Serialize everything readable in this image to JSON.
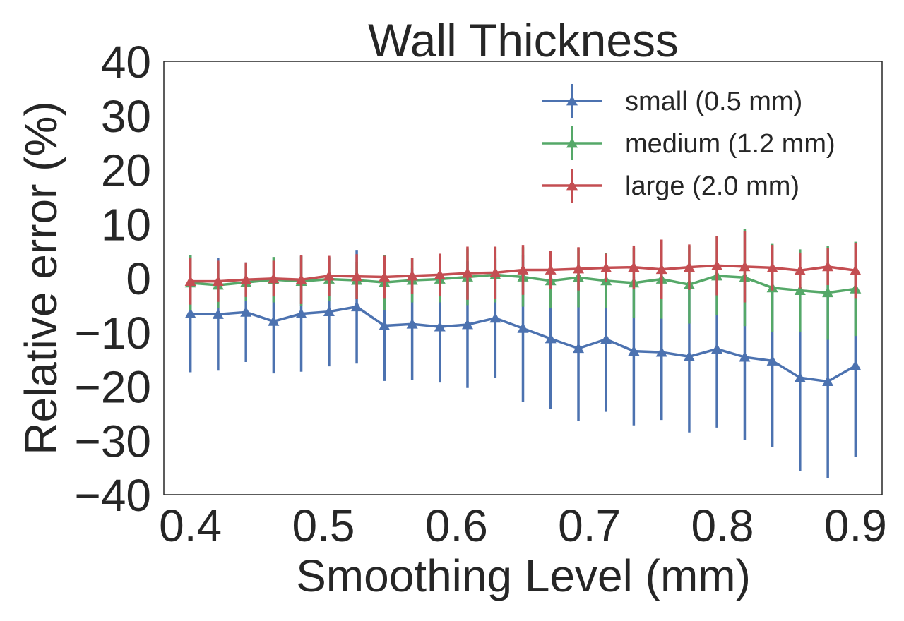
{
  "chart_data": {
    "type": "line",
    "title": "Wall Thickness",
    "xlabel": "Smoothing Level (mm)",
    "ylabel": "Relative error (%)",
    "xlim": [
      0.38,
      0.92
    ],
    "ylim": [
      -40,
      40
    ],
    "xticks": [
      "0.4",
      "0.5",
      "0.6",
      "0.7",
      "0.8",
      "0.9"
    ],
    "yticks": [
      "40",
      "30",
      "20",
      "10",
      "0",
      "−10",
      "−20",
      "−30",
      "−40"
    ],
    "xtick_values": [
      0.4,
      0.5,
      0.6,
      0.7,
      0.8,
      0.9
    ],
    "ytick_values": [
      40,
      30,
      20,
      10,
      0,
      -10,
      -20,
      -30,
      -40
    ],
    "grid": false,
    "legend_position": "top-right",
    "x": [
      0.4,
      0.4208,
      0.4417,
      0.4625,
      0.4833,
      0.5042,
      0.525,
      0.5458,
      0.5667,
      0.5875,
      0.6083,
      0.6292,
      0.65,
      0.6708,
      0.6917,
      0.7125,
      0.7333,
      0.7542,
      0.775,
      0.7958,
      0.8167,
      0.8375,
      0.8583,
      0.8792,
      0.9
    ],
    "series": [
      {
        "name": "small (0.5 mm)",
        "color": "#4c72b0",
        "values": [
          -6.6,
          -6.7,
          -6.3,
          -8.0,
          -6.6,
          -6.2,
          -5.3,
          -8.8,
          -8.5,
          -9.0,
          -8.6,
          -7.4,
          -9.3,
          -11.2,
          -13.0,
          -11.3,
          -13.5,
          -13.7,
          -14.5,
          -13.1,
          -14.6,
          -15.3,
          -18.4,
          -19.1,
          -16.2
        ],
        "err": [
          10.8,
          10.4,
          9.2,
          9.6,
          10.7,
          10.1,
          10.5,
          10.2,
          10.3,
          10.3,
          11.7,
          11.0,
          13.6,
          13.0,
          13.4,
          13.4,
          13.7,
          12.5,
          14.0,
          14.5,
          15.3,
          15.9,
          17.3,
          17.8,
          16.9
        ]
      },
      {
        "name": "medium (1.2 mm)",
        "color": "#55a868",
        "values": [
          -0.9,
          -1.3,
          -0.8,
          -0.3,
          -0.6,
          -0.2,
          -0.4,
          -0.8,
          -0.4,
          -0.2,
          0.2,
          0.6,
          0.2,
          -0.5,
          0.1,
          -0.5,
          -0.9,
          -0.2,
          -1.2,
          0.4,
          0.1,
          -1.8,
          -2.3,
          -2.7,
          -2.0
        ]
      },
      {
        "name": "large (2.0 mm)",
        "color": "#c44e52",
        "values": [
          -0.6,
          -0.6,
          -0.3,
          -0.1,
          -0.3,
          0.4,
          0.3,
          0.2,
          0.4,
          0.6,
          0.9,
          1.0,
          1.5,
          1.5,
          1.7,
          1.9,
          2.0,
          1.6,
          2.0,
          2.3,
          2.1,
          1.9,
          1.4,
          2.1,
          1.4
        ]
      }
    ],
    "medium_err": [
      5.1,
      4.3,
      3.4,
      4.2,
      4.6,
      4.0,
      3.4,
      5.1,
      4.1,
      4.3,
      5.2,
      5.1,
      5.5,
      5.0,
      5.5,
      5.1,
      6.4,
      7.3,
      7.2,
      7.3,
      9.0,
      8.1,
      7.6,
      8.7,
      8.7
    ],
    "large_err": [
      4.3,
      3.8,
      3.2,
      3.3,
      4.5,
      3.7,
      4.1,
      3.9,
      3.3,
      3.9,
      4.9,
      4.8,
      4.6,
      3.5,
      4.0,
      2.6,
      4.0,
      5.5,
      4.2,
      5.5,
      6.6,
      4.2,
      3.3,
      3.4,
      5.1
    ]
  }
}
